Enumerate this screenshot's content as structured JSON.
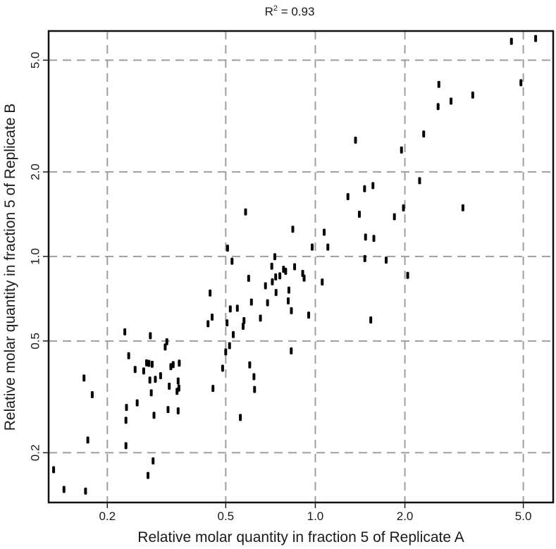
{
  "chart_data": {
    "type": "scatter",
    "title": "R² = 0.93",
    "title_prefix": "R",
    "title_sup": "2",
    "title_suffix": " = 0.93",
    "xlabel": "Relative molar quantity in fraction 5 of Replicate A",
    "ylabel": "Relative molar quantity in fraction 5 of Replicate B",
    "xscale": "log",
    "yscale": "log",
    "xlim": [
      0.127,
      6.3
    ],
    "ylim": [
      0.133,
      6.35
    ],
    "grid": true,
    "x_ticks": [
      0.2,
      0.5,
      1.0,
      2.0,
      5.0
    ],
    "x_tick_labels": [
      "0.2",
      "0.5",
      "1.0",
      "2.0",
      "5.0"
    ],
    "y_ticks": [
      0.2,
      0.5,
      1.0,
      2.0,
      5.0
    ],
    "y_tick_labels": [
      "0.2",
      "0.5",
      "1.0",
      "2.0",
      "5.0"
    ],
    "color": "#000000",
    "grid_color": "#9e9e9e",
    "points": [
      [
        0.132,
        0.174
      ],
      [
        0.143,
        0.148
      ],
      [
        0.167,
        0.369
      ],
      [
        0.172,
        0.222
      ],
      [
        0.178,
        0.322
      ],
      [
        0.169,
        0.146
      ],
      [
        0.229,
        0.539
      ],
      [
        0.231,
        0.212
      ],
      [
        0.231,
        0.261
      ],
      [
        0.232,
        0.29
      ],
      [
        0.236,
        0.443
      ],
      [
        0.248,
        0.396
      ],
      [
        0.252,
        0.301
      ],
      [
        0.265,
        0.391
      ],
      [
        0.271,
        0.418
      ],
      [
        0.274,
        0.166
      ],
      [
        0.276,
        0.416
      ],
      [
        0.278,
        0.363
      ],
      [
        0.279,
        0.522
      ],
      [
        0.281,
        0.327
      ],
      [
        0.283,
        0.413
      ],
      [
        0.285,
        0.187
      ],
      [
        0.287,
        0.272
      ],
      [
        0.29,
        0.365
      ],
      [
        0.302,
        0.376
      ],
      [
        0.313,
        0.476
      ],
      [
        0.317,
        0.497
      ],
      [
        0.32,
        0.285
      ],
      [
        0.323,
        0.345
      ],
      [
        0.327,
        0.405
      ],
      [
        0.333,
        0.412
      ],
      [
        0.343,
        0.331
      ],
      [
        0.346,
        0.36
      ],
      [
        0.346,
        0.282
      ],
      [
        0.348,
        0.34
      ],
      [
        0.349,
        0.417
      ],
      [
        0.436,
        0.576
      ],
      [
        0.443,
        0.741
      ],
      [
        0.453,
        0.339
      ],
      [
        0.45,
        0.608
      ],
      [
        0.488,
        0.4
      ],
      [
        0.5,
        0.457
      ],
      [
        0.505,
        0.58
      ],
      [
        0.515,
        0.481
      ],
      [
        0.507,
        1.07
      ],
      [
        0.525,
        0.962
      ],
      [
        0.518,
        0.65
      ],
      [
        0.53,
        0.527
      ],
      [
        0.547,
        0.654
      ],
      [
        0.56,
        0.267
      ],
      [
        0.572,
        0.564
      ],
      [
        0.576,
        0.591
      ],
      [
        0.583,
        1.44
      ],
      [
        0.597,
        0.836
      ],
      [
        0.602,
        0.411
      ],
      [
        0.61,
        0.688
      ],
      [
        0.622,
        0.373
      ],
      [
        0.625,
        0.336
      ],
      [
        0.654,
        0.603
      ],
      [
        0.68,
        0.786
      ],
      [
        0.691,
        0.684
      ],
      [
        0.714,
        0.923
      ],
      [
        0.717,
        0.812
      ],
      [
        0.731,
        0.998
      ],
      [
        0.736,
        0.846
      ],
      [
        0.738,
        0.744
      ],
      [
        0.76,
        0.853
      ],
      [
        0.782,
        0.9
      ],
      [
        0.795,
        0.885
      ],
      [
        0.811,
        0.695
      ],
      [
        0.815,
        0.759
      ],
      [
        0.83,
        0.461
      ],
      [
        0.831,
        0.641
      ],
      [
        0.84,
        1.25
      ],
      [
        0.852,
        0.919
      ],
      [
        0.907,
        0.87
      ],
      [
        0.917,
        0.837
      ],
      [
        0.95,
        0.618
      ],
      [
        0.976,
        1.08
      ],
      [
        1.055,
        0.811
      ],
      [
        1.071,
        1.22
      ],
      [
        1.102,
        1.08
      ],
      [
        1.287,
        1.633
      ],
      [
        1.365,
        2.595
      ],
      [
        1.406,
        1.413
      ],
      [
        1.475,
        1.172
      ],
      [
        1.464,
        1.743
      ],
      [
        1.467,
        0.983
      ],
      [
        1.536,
        0.594
      ],
      [
        1.562,
        1.787
      ],
      [
        1.573,
        1.16
      ],
      [
        1.73,
        0.97
      ],
      [
        1.844,
        1.385
      ],
      [
        1.948,
        2.393
      ],
      [
        1.978,
        1.489
      ],
      [
        2.044,
        0.856
      ],
      [
        2.241,
        1.861
      ],
      [
        2.313,
        2.729
      ],
      [
        2.586,
        3.418
      ],
      [
        2.601,
        4.1
      ],
      [
        2.858,
        3.573
      ],
      [
        3.133,
        1.49
      ],
      [
        3.381,
        3.756
      ],
      [
        4.561,
        5.834
      ],
      [
        4.909,
        4.156
      ],
      [
        5.5,
        5.97
      ]
    ]
  }
}
